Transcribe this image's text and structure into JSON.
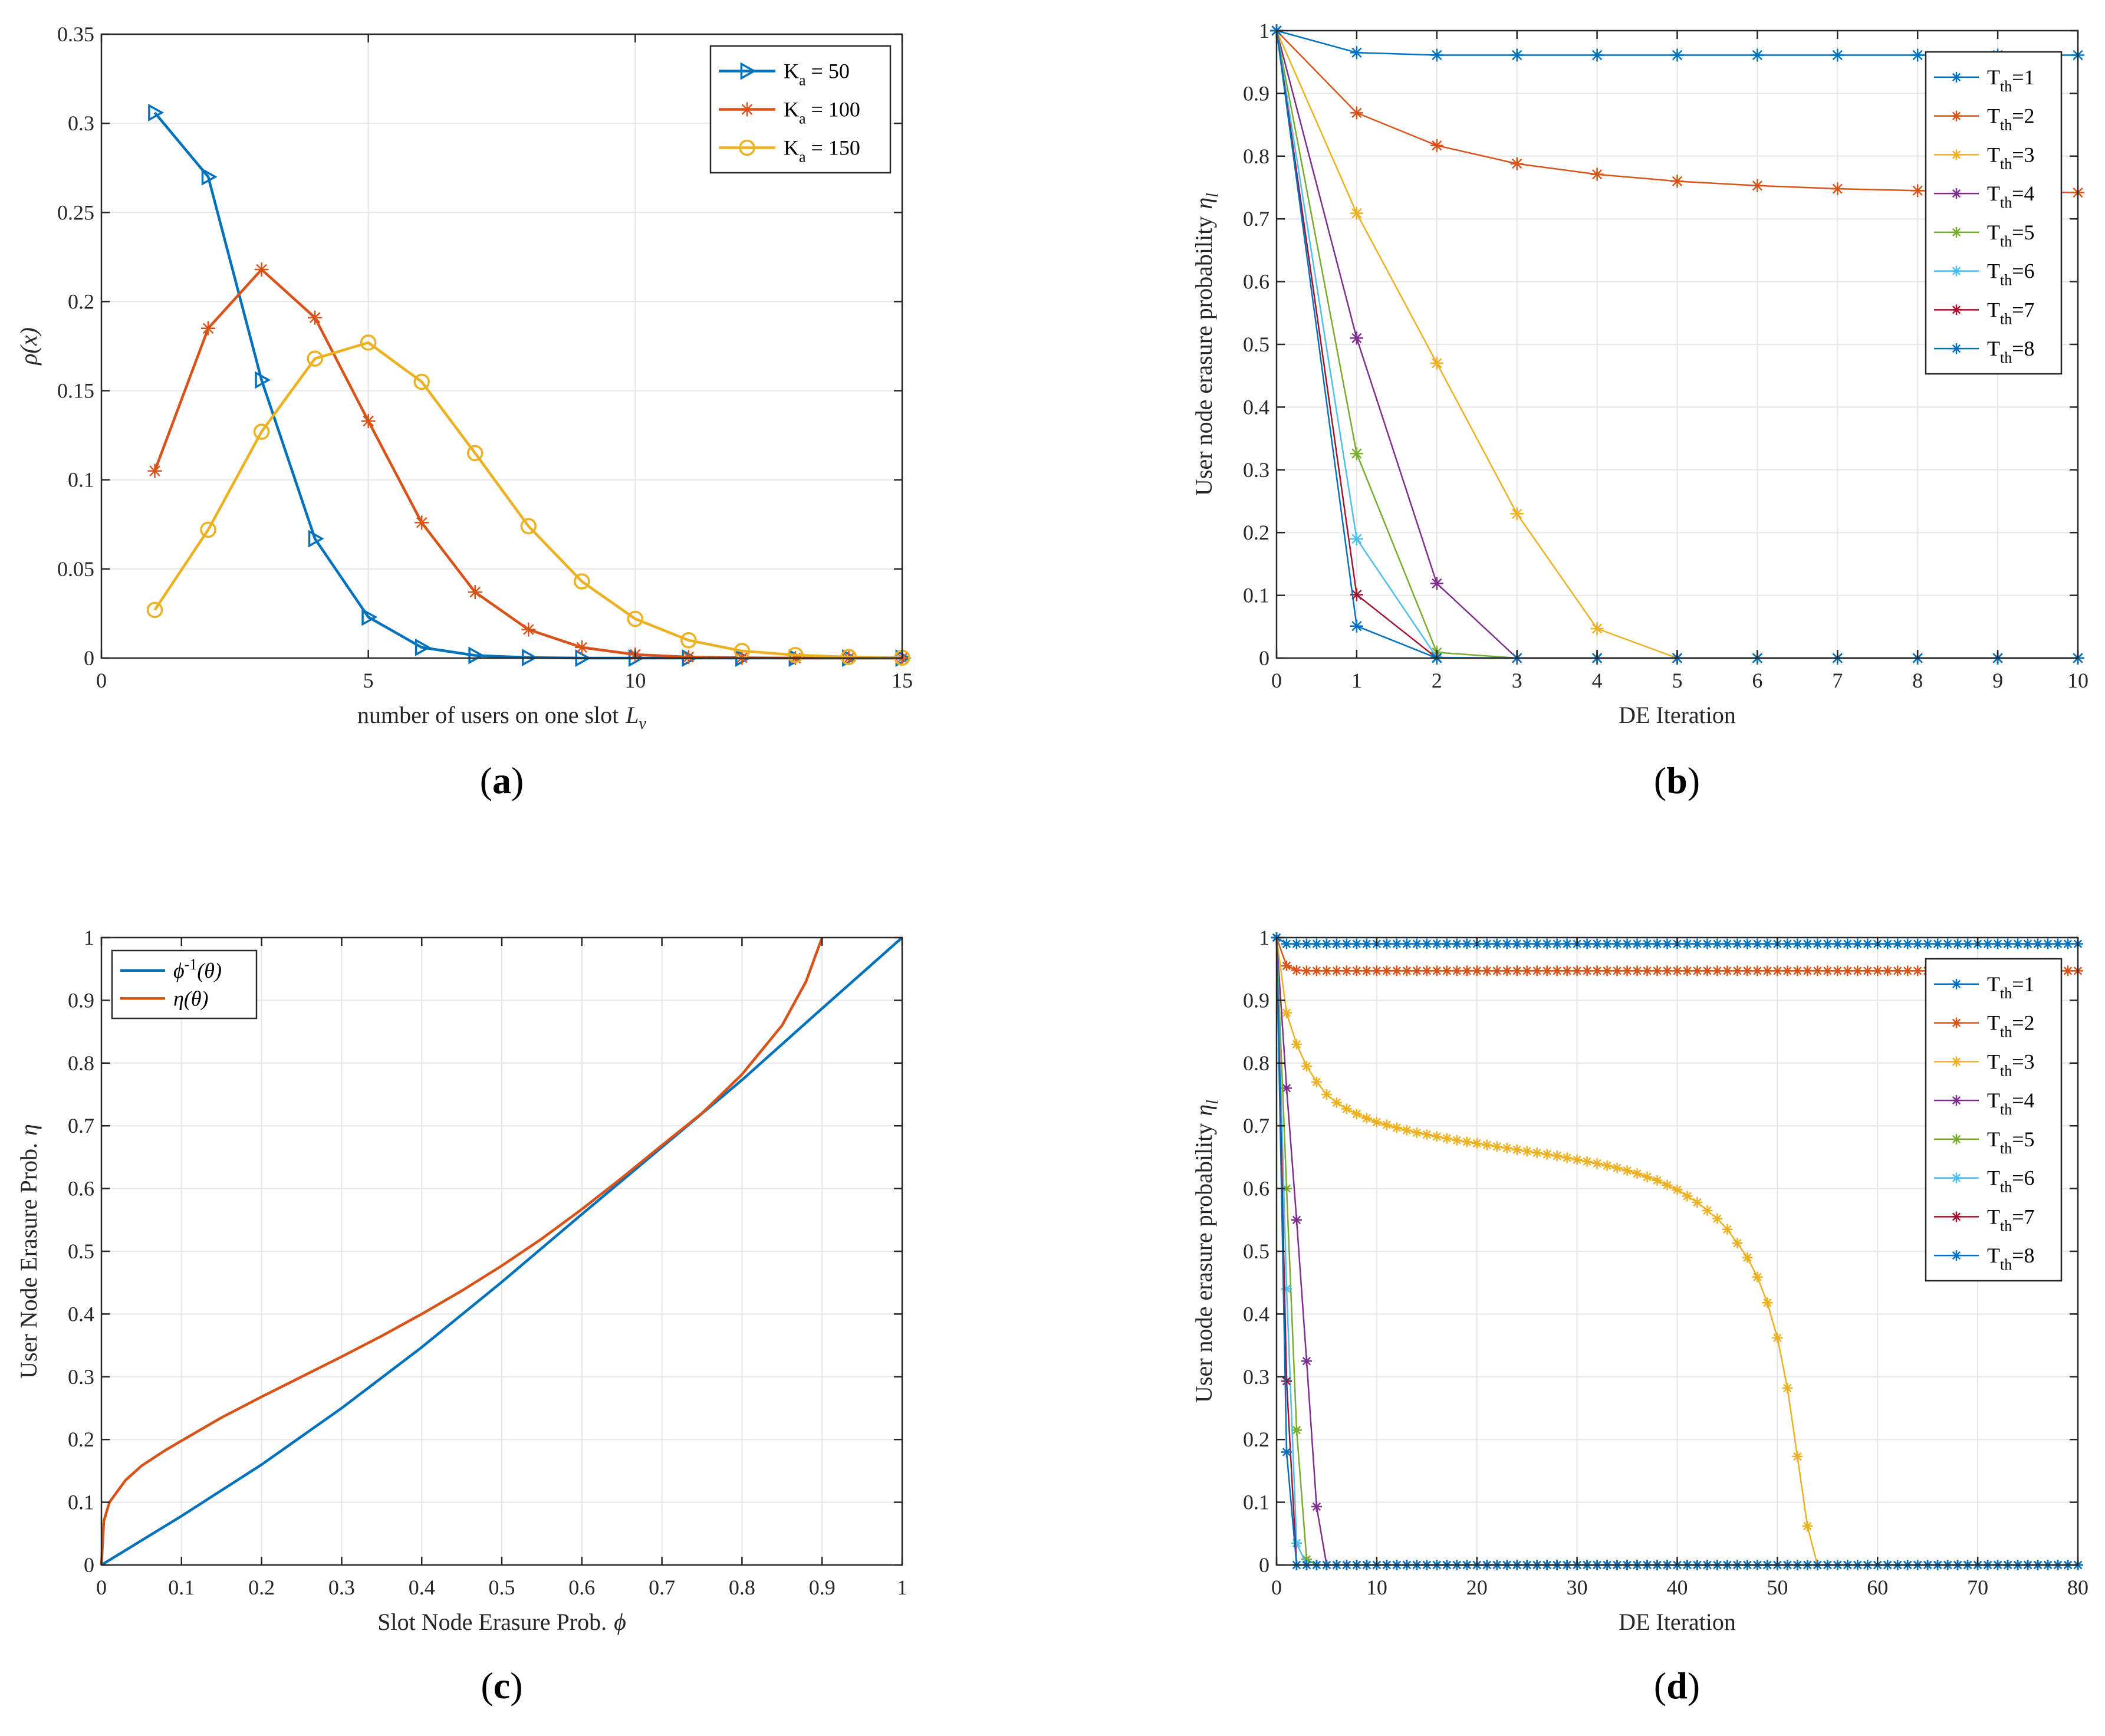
{
  "colors": {
    "blue": "#0072BD",
    "orange": "#D95319",
    "yellow": "#EDB120",
    "purple": "#7E2F8E",
    "green": "#77AC30",
    "cyan": "#4DBEEE",
    "maroon": "#A2142F"
  },
  "chart_data": [
    {
      "id": "a",
      "type": "line",
      "panel_label": "a",
      "title": "",
      "xlabel": "number of users on one slot",
      "xlabel_math": "L",
      "xlabel_sub": "v",
      "ylabel": "ρ(x)",
      "xlim": [
        0,
        15
      ],
      "ylim": [
        0,
        0.35
      ],
      "xticks": [
        0,
        5,
        10,
        15
      ],
      "yticks": [
        0,
        0.05,
        0.1,
        0.15,
        0.2,
        0.25,
        0.3,
        0.35
      ],
      "ytick_labels": [
        "0",
        "0.05",
        "0.1",
        "0.15",
        "0.2",
        "0.25",
        "0.3",
        "0.35"
      ],
      "grid": true,
      "legend_position": "top-right",
      "series": [
        {
          "name": "K_a = 50",
          "legend_main": "K",
          "legend_sub": "a",
          "legend_tail": " = 50",
          "color": "blue",
          "marker": "triangle",
          "x": [
            1,
            2,
            3,
            4,
            5,
            6,
            7,
            8,
            9,
            10,
            11,
            12,
            13,
            14,
            15
          ],
          "y": [
            0.306,
            0.27,
            0.156,
            0.067,
            0.023,
            0.006,
            0.0015,
            0.0003,
            0,
            0,
            0,
            0,
            0,
            0,
            0
          ]
        },
        {
          "name": "K_a = 100",
          "legend_main": "K",
          "legend_sub": "a",
          "legend_tail": " = 100",
          "color": "orange",
          "marker": "asterisk",
          "x": [
            1,
            2,
            3,
            4,
            5,
            6,
            7,
            8,
            9,
            10,
            11,
            12,
            13,
            14,
            15
          ],
          "y": [
            0.105,
            0.185,
            0.218,
            0.191,
            0.133,
            0.076,
            0.037,
            0.016,
            0.006,
            0.002,
            0.0006,
            0.0002,
            0,
            0,
            0
          ]
        },
        {
          "name": "K_a = 150",
          "legend_main": "K",
          "legend_sub": "a",
          "legend_tail": " = 150",
          "color": "yellow",
          "marker": "circle",
          "x": [
            1,
            2,
            3,
            4,
            5,
            6,
            7,
            8,
            9,
            10,
            11,
            12,
            13,
            14,
            15
          ],
          "y": [
            0.027,
            0.072,
            0.127,
            0.168,
            0.177,
            0.155,
            0.115,
            0.074,
            0.043,
            0.022,
            0.01,
            0.004,
            0.0017,
            0.0006,
            0.0002
          ]
        }
      ]
    },
    {
      "id": "b",
      "type": "line",
      "panel_label": "b",
      "title": "",
      "xlabel": "DE Iteration",
      "ylabel": "User node erasure probability",
      "ylabel_math": "η",
      "ylabel_sub": "l",
      "xlim": [
        0,
        10
      ],
      "ylim": [
        0,
        1
      ],
      "xticks": [
        0,
        1,
        2,
        3,
        4,
        5,
        6,
        7,
        8,
        9,
        10
      ],
      "yticks": [
        0,
        0.1,
        0.2,
        0.3,
        0.4,
        0.5,
        0.6,
        0.7,
        0.8,
        0.9,
        1
      ],
      "ytick_labels": [
        "0",
        "0.1",
        "0.2",
        "0.3",
        "0.4",
        "0.5",
        "0.6",
        "0.7",
        "0.8",
        "0.9",
        "1"
      ],
      "grid": true,
      "legend_position": "top-right",
      "series": [
        {
          "name": "T_th=1",
          "legend_main": "T",
          "legend_sub": "th",
          "legend_tail": "=1",
          "color": "blue",
          "marker": "asterisk",
          "x": [
            0,
            1,
            2,
            3,
            4,
            5,
            6,
            7,
            8,
            9,
            10
          ],
          "y": [
            1,
            0.965,
            0.961,
            0.961,
            0.961,
            0.961,
            0.961,
            0.961,
            0.961,
            0.961,
            0.961
          ]
        },
        {
          "name": "T_th=2",
          "legend_main": "T",
          "legend_sub": "th",
          "legend_tail": "=2",
          "color": "orange",
          "marker": "asterisk",
          "x": [
            0,
            1,
            2,
            3,
            4,
            5,
            6,
            7,
            8,
            9,
            10
          ],
          "y": [
            1,
            0.869,
            0.817,
            0.788,
            0.771,
            0.76,
            0.753,
            0.748,
            0.745,
            0.743,
            0.742
          ]
        },
        {
          "name": "T_th=3",
          "legend_main": "T",
          "legend_sub": "th",
          "legend_tail": "=3",
          "color": "yellow",
          "marker": "asterisk",
          "x": [
            0,
            1,
            2,
            3,
            4,
            5,
            6,
            7,
            8,
            9,
            10
          ],
          "y": [
            1,
            0.709,
            0.47,
            0.23,
            0.047,
            0,
            0,
            0,
            0,
            0,
            0
          ]
        },
        {
          "name": "T_th=4",
          "legend_main": "T",
          "legend_sub": "th",
          "legend_tail": "=4",
          "color": "purple",
          "marker": "asterisk",
          "x": [
            0,
            1,
            2,
            3,
            4,
            5,
            6,
            7,
            8,
            9,
            10
          ],
          "y": [
            1,
            0.51,
            0.119,
            0,
            0,
            0,
            0,
            0,
            0,
            0,
            0
          ]
        },
        {
          "name": "T_th=5",
          "legend_main": "T",
          "legend_sub": "th",
          "legend_tail": "=5",
          "color": "green",
          "marker": "asterisk",
          "x": [
            0,
            1,
            2,
            3,
            4,
            5,
            6,
            7,
            8,
            9,
            10
          ],
          "y": [
            1,
            0.326,
            0.009,
            0,
            0,
            0,
            0,
            0,
            0,
            0,
            0
          ]
        },
        {
          "name": "T_th=6",
          "legend_main": "T",
          "legend_sub": "th",
          "legend_tail": "=6",
          "color": "cyan",
          "marker": "asterisk",
          "x": [
            0,
            1,
            2,
            3,
            4,
            5,
            6,
            7,
            8,
            9,
            10
          ],
          "y": [
            1,
            0.19,
            0.001,
            0,
            0,
            0,
            0,
            0,
            0,
            0,
            0
          ]
        },
        {
          "name": "T_th=7",
          "legend_main": "T",
          "legend_sub": "th",
          "legend_tail": "=7",
          "color": "maroon",
          "marker": "asterisk",
          "x": [
            0,
            1,
            2,
            3,
            4,
            5,
            6,
            7,
            8,
            9,
            10
          ],
          "y": [
            1,
            0.101,
            0,
            0,
            0,
            0,
            0,
            0,
            0,
            0,
            0
          ]
        },
        {
          "name": "T_th=8",
          "legend_main": "T",
          "legend_sub": "th",
          "legend_tail": "=8",
          "color": "blue",
          "marker": "asterisk",
          "x": [
            0,
            1,
            2,
            3,
            4,
            5,
            6,
            7,
            8,
            9,
            10
          ],
          "y": [
            1,
            0.051,
            0,
            0,
            0,
            0,
            0,
            0,
            0,
            0,
            0
          ]
        }
      ]
    },
    {
      "id": "c",
      "type": "line",
      "panel_label": "c",
      "title": "",
      "xlabel": "Slot Node Erasure Prob.",
      "xlabel_math": "ϕ",
      "ylabel": "User Node Erasure Prob.",
      "ylabel_math": "η",
      "xlim": [
        0,
        1
      ],
      "ylim": [
        0,
        1
      ],
      "xticks": [
        0,
        0.1,
        0.2,
        0.3,
        0.4,
        0.5,
        0.6,
        0.7,
        0.8,
        0.9,
        1
      ],
      "xtick_labels": [
        "0",
        "0.1",
        "0.2",
        "0.3",
        "0.4",
        "0.5",
        "0.6",
        "0.7",
        "0.8",
        "0.9",
        "1"
      ],
      "yticks": [
        0,
        0.1,
        0.2,
        0.3,
        0.4,
        0.5,
        0.6,
        0.7,
        0.8,
        0.9,
        1
      ],
      "ytick_labels": [
        "0",
        "0.1",
        "0.2",
        "0.3",
        "0.4",
        "0.5",
        "0.6",
        "0.7",
        "0.8",
        "0.9",
        "1"
      ],
      "grid": true,
      "legend_position": "top-left",
      "series": [
        {
          "name": "ϕ⁻¹(θ)",
          "legend_main": "ϕ",
          "legend_sup": "-1",
          "legend_tail": "(θ)",
          "color": "blue",
          "marker": "none",
          "x": [
            0,
            0.1,
            0.2,
            0.3,
            0.4,
            0.5,
            0.6,
            0.7,
            0.8,
            0.9,
            1
          ],
          "y": [
            0,
            0.078,
            0.16,
            0.25,
            0.347,
            0.451,
            0.559,
            0.666,
            0.773,
            0.887,
            1
          ]
        },
        {
          "name": "η(θ)",
          "legend_main": "η",
          "legend_tail": "(θ)",
          "color": "orange",
          "marker": "none",
          "x": [
            0,
            0.003,
            0.01,
            0.03,
            0.05,
            0.08,
            0.1,
            0.15,
            0.2,
            0.25,
            0.3,
            0.35,
            0.4,
            0.45,
            0.5,
            0.55,
            0.6,
            0.65,
            0.7,
            0.75,
            0.8,
            0.85,
            0.88,
            0.9
          ],
          "y": [
            0,
            0.07,
            0.1,
            0.135,
            0.158,
            0.183,
            0.198,
            0.235,
            0.268,
            0.3,
            0.332,
            0.365,
            0.4,
            0.437,
            0.477,
            0.52,
            0.567,
            0.617,
            0.669,
            0.72,
            0.782,
            0.86,
            0.93,
            1.0
          ]
        }
      ]
    },
    {
      "id": "d",
      "type": "line",
      "panel_label": "d",
      "title": "",
      "xlabel": "DE Iteration",
      "ylabel": "User node erasure probability",
      "ylabel_math": "η",
      "ylabel_sub": "l",
      "xlim": [
        0,
        80
      ],
      "ylim": [
        0,
        1
      ],
      "xticks": [
        0,
        10,
        20,
        30,
        40,
        50,
        60,
        70,
        80
      ],
      "yticks": [
        0,
        0.1,
        0.2,
        0.3,
        0.4,
        0.5,
        0.6,
        0.7,
        0.8,
        0.9,
        1
      ],
      "ytick_labels": [
        "0",
        "0.1",
        "0.2",
        "0.3",
        "0.4",
        "0.5",
        "0.6",
        "0.7",
        "0.8",
        "0.9",
        "1"
      ],
      "grid": true,
      "legend_position": "top-right",
      "series": [
        {
          "name": "T_th=1",
          "legend_main": "T",
          "legend_sub": "th",
          "legend_tail": "=1",
          "color": "blue",
          "marker": "asterisk",
          "x": [
            0,
            1,
            2,
            80
          ],
          "y": [
            1,
            0.99,
            0.99,
            0.99
          ],
          "dense": true
        },
        {
          "name": "T_th=2",
          "legend_main": "T",
          "legend_sub": "th",
          "legend_tail": "=2",
          "color": "orange",
          "marker": "asterisk",
          "x": [
            0,
            1,
            2,
            3,
            80
          ],
          "y": [
            1,
            0.955,
            0.948,
            0.947,
            0.947
          ],
          "dense": true
        },
        {
          "name": "T_th=3",
          "legend_main": "T",
          "legend_sub": "th",
          "legend_tail": "=3",
          "color": "yellow",
          "marker": "asterisk",
          "x": [
            0,
            1,
            2,
            3,
            4,
            5,
            6,
            7,
            8,
            9,
            10,
            12,
            14,
            16,
            18,
            20,
            22,
            24,
            26,
            28,
            30,
            32,
            34,
            36,
            38,
            40,
            42,
            44,
            45,
            46,
            47,
            48,
            49,
            50,
            51,
            52,
            53,
            54,
            55,
            56,
            57,
            80
          ],
          "y": [
            1,
            0.88,
            0.83,
            0.795,
            0.77,
            0.75,
            0.737,
            0.727,
            0.719,
            0.712,
            0.706,
            0.697,
            0.689,
            0.683,
            0.677,
            0.672,
            0.667,
            0.662,
            0.657,
            0.652,
            0.646,
            0.64,
            0.633,
            0.624,
            0.613,
            0.598,
            0.578,
            0.552,
            0.535,
            0.513,
            0.49,
            0.459,
            0.418,
            0.362,
            0.282,
            0.173,
            0.062,
            0,
            0,
            0,
            0,
            0
          ],
          "dense": true
        },
        {
          "name": "T_th=4",
          "legend_main": "T",
          "legend_sub": "th",
          "legend_tail": "=4",
          "color": "purple",
          "marker": "asterisk",
          "x": [
            0,
            1,
            2,
            3,
            4,
            5,
            80
          ],
          "y": [
            1,
            0.76,
            0.55,
            0.325,
            0.093,
            0,
            0
          ],
          "dense": true
        },
        {
          "name": "T_th=5",
          "legend_main": "T",
          "legend_sub": "th",
          "legend_tail": "=5",
          "color": "green",
          "marker": "asterisk",
          "x": [
            0,
            1,
            2,
            3,
            4,
            80
          ],
          "y": [
            1,
            0.6,
            0.215,
            0.009,
            0,
            0
          ],
          "dense": true
        },
        {
          "name": "T_th=6",
          "legend_main": "T",
          "legend_sub": "th",
          "legend_tail": "=6",
          "color": "cyan",
          "marker": "asterisk",
          "x": [
            0,
            1,
            2,
            3,
            80
          ],
          "y": [
            1,
            0.44,
            0.035,
            0,
            0
          ],
          "dense": true
        },
        {
          "name": "T_th=7",
          "legend_main": "T",
          "legend_sub": "th",
          "legend_tail": "=7",
          "color": "maroon",
          "marker": "asterisk",
          "x": [
            0,
            1,
            2,
            80
          ],
          "y": [
            1,
            0.293,
            0,
            0
          ],
          "dense": true
        },
        {
          "name": "T_th=8",
          "legend_main": "T",
          "legend_sub": "th",
          "legend_tail": "=8",
          "color": "blue",
          "marker": "asterisk",
          "x": [
            0,
            1,
            2,
            80
          ],
          "y": [
            1,
            0.18,
            0,
            0
          ],
          "dense": true
        }
      ]
    }
  ]
}
